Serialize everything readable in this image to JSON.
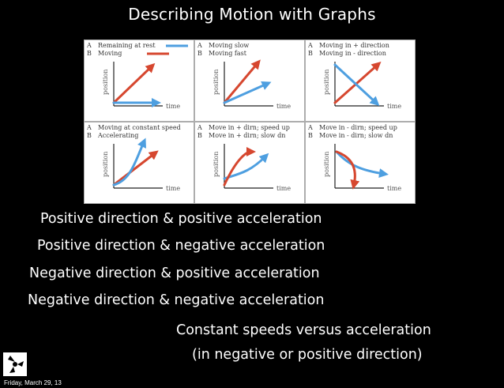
{
  "title": "Describing Motion with Graphs",
  "colors": {
    "red": "#d6472f",
    "blue": "#4e9fe0",
    "axis": "#222222"
  },
  "panels": [
    {
      "a": "Remaining at rest",
      "b": "Moving",
      "ylabel": "position",
      "xlabel": "time"
    },
    {
      "a": "Moving slow",
      "b": "Moving fast",
      "ylabel": "position",
      "xlabel": "time"
    },
    {
      "a": "Moving in + direction",
      "b": "Moving in - direction",
      "ylabel": "position",
      "xlabel": "time"
    },
    {
      "a": "Moving at constant speed",
      "b": "Accelerating",
      "ylabel": "position",
      "xlabel": "time"
    },
    {
      "a": "Move in + dirn; speed up",
      "b": "Move in + dirn; slow dn",
      "ylabel": "position",
      "xlabel": "time"
    },
    {
      "a": "Move in - dirn; speed up",
      "b": "Move in - dirn; slow dn",
      "ylabel": "position",
      "xlabel": "time"
    }
  ],
  "letters": {
    "a": "A",
    "b": "B"
  },
  "lines": [
    "Positive direction & positive acceleration",
    "Positive direction & negative acceleration",
    "Negative direction & positive acceleration",
    "Negative direction & negative acceleration"
  ],
  "note": {
    "line1": "Constant speeds versus acceleration",
    "line2": "(in negative or positive direction)"
  },
  "footer_date": "Friday, March 29, 13"
}
